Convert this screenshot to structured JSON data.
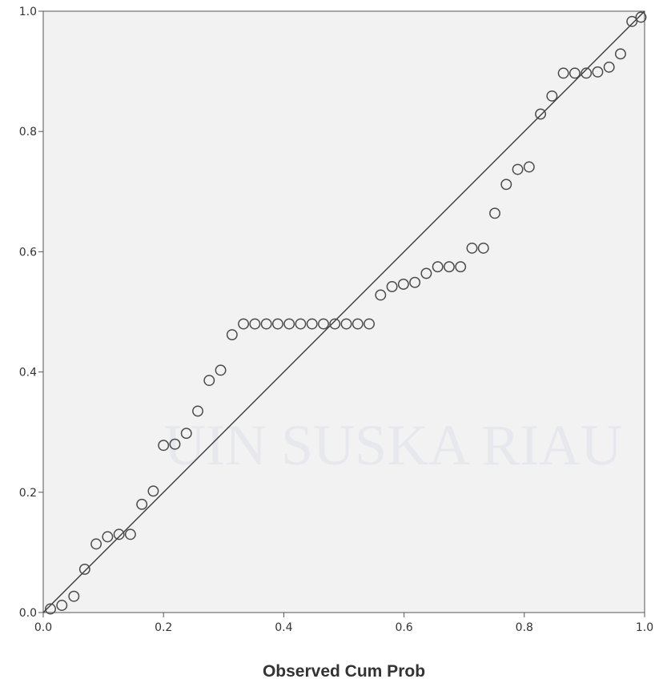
{
  "chart_data": {
    "type": "scatter",
    "title": "",
    "xlabel": "Observed Cum Prob",
    "ylabel": "",
    "xlim": [
      0,
      1
    ],
    "ylim": [
      0,
      1
    ],
    "x_ticks": [
      "0.0",
      "0.2",
      "0.4",
      "0.6",
      "0.8",
      "1.0"
    ],
    "y_ticks": [
      "0.0",
      "0.2",
      "0.4",
      "0.6",
      "0.8",
      "1.0"
    ],
    "grid": false,
    "reference_line": {
      "from": [
        0,
        0
      ],
      "to": [
        1,
        1
      ]
    },
    "series": [
      {
        "marker": "open-circle",
        "points": [
          [
            0.012,
            0.006
          ],
          [
            0.031,
            0.012
          ],
          [
            0.051,
            0.027
          ],
          [
            0.069,
            0.072
          ],
          [
            0.088,
            0.114
          ],
          [
            0.107,
            0.126
          ],
          [
            0.126,
            0.13
          ],
          [
            0.145,
            0.13
          ],
          [
            0.164,
            0.18
          ],
          [
            0.183,
            0.202
          ],
          [
            0.2,
            0.278
          ],
          [
            0.219,
            0.28
          ],
          [
            0.238,
            0.298
          ],
          [
            0.257,
            0.335
          ],
          [
            0.276,
            0.386
          ],
          [
            0.295,
            0.403
          ],
          [
            0.314,
            0.462
          ],
          [
            0.333,
            0.48
          ],
          [
            0.352,
            0.48
          ],
          [
            0.371,
            0.48
          ],
          [
            0.39,
            0.48
          ],
          [
            0.409,
            0.48
          ],
          [
            0.428,
            0.48
          ],
          [
            0.447,
            0.48
          ],
          [
            0.466,
            0.48
          ],
          [
            0.485,
            0.48
          ],
          [
            0.504,
            0.48
          ],
          [
            0.523,
            0.48
          ],
          [
            0.542,
            0.48
          ],
          [
            0.561,
            0.528
          ],
          [
            0.58,
            0.542
          ],
          [
            0.599,
            0.546
          ],
          [
            0.618,
            0.549
          ],
          [
            0.637,
            0.564
          ],
          [
            0.656,
            0.575
          ],
          [
            0.675,
            0.575
          ],
          [
            0.694,
            0.575
          ],
          [
            0.713,
            0.606
          ],
          [
            0.732,
            0.606
          ],
          [
            0.751,
            0.664
          ],
          [
            0.77,
            0.712
          ],
          [
            0.789,
            0.737
          ],
          [
            0.808,
            0.741
          ],
          [
            0.827,
            0.829
          ],
          [
            0.846,
            0.859
          ],
          [
            0.865,
            0.897
          ],
          [
            0.884,
            0.897
          ],
          [
            0.903,
            0.897
          ],
          [
            0.922,
            0.899
          ],
          [
            0.941,
            0.907
          ],
          [
            0.96,
            0.929
          ],
          [
            0.979,
            0.983
          ],
          [
            0.994,
            0.99
          ]
        ]
      }
    ]
  },
  "colors": {
    "plot_background": "#f2f2f2",
    "marker_stroke": "#4a4a4a",
    "reference_line": "#3a3a3a",
    "axis": "#555555",
    "watermark": "#e7e7ee"
  },
  "watermark": {
    "text": "UIN SUSKA RIAU"
  }
}
